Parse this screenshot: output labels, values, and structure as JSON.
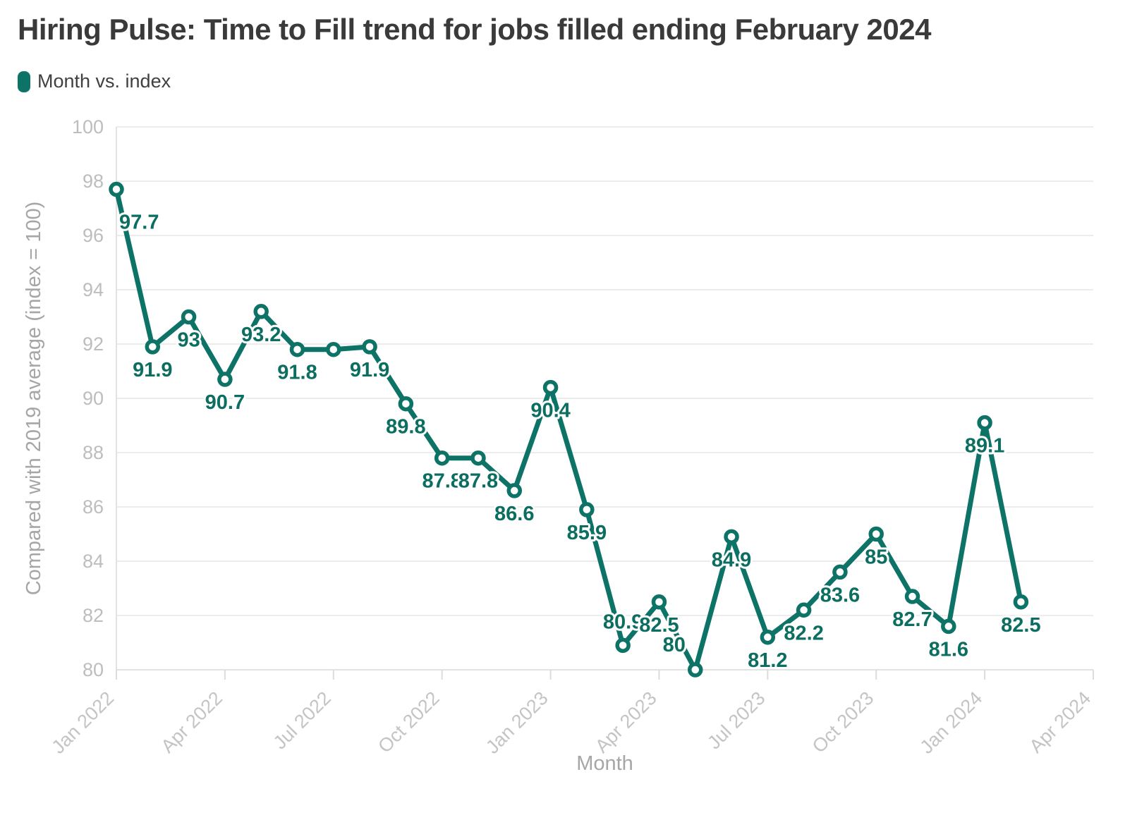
{
  "page": {
    "title": "Hiring Pulse: Time to Fill trend for jobs filled ending February 2024"
  },
  "legend": {
    "label": "Month vs. index"
  },
  "palette": {
    "series_teal": "#0d7367",
    "label_teal": "#0c6e60",
    "gridline_gray": "#ececec",
    "axis_gray": "#e2e2e2",
    "tick_text_gray": "#c4c4c4",
    "axis_title_gray": "#a6a6a6",
    "title_gray": "#3a3a3a"
  },
  "chart_data": {
    "type": "line",
    "title": "Hiring Pulse: Time to Fill trend for jobs filled ending February 2024",
    "series_name": "Month vs. index",
    "x": [
      "Jan 2022",
      "Feb 2022",
      "Mar 2022",
      "Apr 2022",
      "May 2022",
      "Jun 2022",
      "Jul 2022",
      "Aug 2022",
      "Sep 2022",
      "Oct 2022",
      "Nov 2022",
      "Dec 2022",
      "Jan 2023",
      "Feb 2023",
      "Mar 2023",
      "Apr 2023",
      "May 2023",
      "Jun 2023",
      "Jul 2023",
      "Aug 2023",
      "Sep 2023",
      "Oct 2023",
      "Nov 2023",
      "Dec 2023",
      "Jan 2024",
      "Feb 2024"
    ],
    "values": [
      97.7,
      91.9,
      93,
      90.7,
      93.2,
      91.8,
      91.8,
      91.9,
      89.8,
      87.8,
      87.8,
      86.6,
      90.4,
      85.9,
      80.9,
      82.5,
      80,
      84.9,
      81.2,
      82.2,
      83.6,
      85,
      82.7,
      81.6,
      89.1,
      82.5
    ],
    "point_labels": [
      "97.7",
      "91.9",
      "93",
      "90.7",
      "93.2",
      "91.8",
      null,
      "91.9",
      "89.8",
      "87.8",
      "87.8",
      "86.6",
      "90.4",
      "85.9",
      "80.9",
      "82.5",
      "80",
      "84.9",
      "81.2",
      "82.2",
      "83.6",
      "85",
      "82.7",
      "81.6",
      "89.1",
      "82.5"
    ],
    "xlabel": "Month",
    "ylabel": "Compared with 2019 average (index = 100)",
    "ylim": [
      80,
      100
    ],
    "y_ticks": [
      80,
      82,
      84,
      86,
      88,
      90,
      92,
      94,
      96,
      98,
      100
    ],
    "x_ticks": [
      "Jan 2022",
      "Apr 2022",
      "Jul 2022",
      "Oct 2022",
      "Jan 2023",
      "Apr 2023",
      "Jul 2023",
      "Oct 2023",
      "Jan 2024",
      "Apr 2024"
    ],
    "x_domain_months": 27,
    "grid": "horizontal-only",
    "legend_position": "top-left",
    "marker_style": "open-circle",
    "line_color": "#0d7367",
    "point_label_color": "#0c6e60"
  }
}
